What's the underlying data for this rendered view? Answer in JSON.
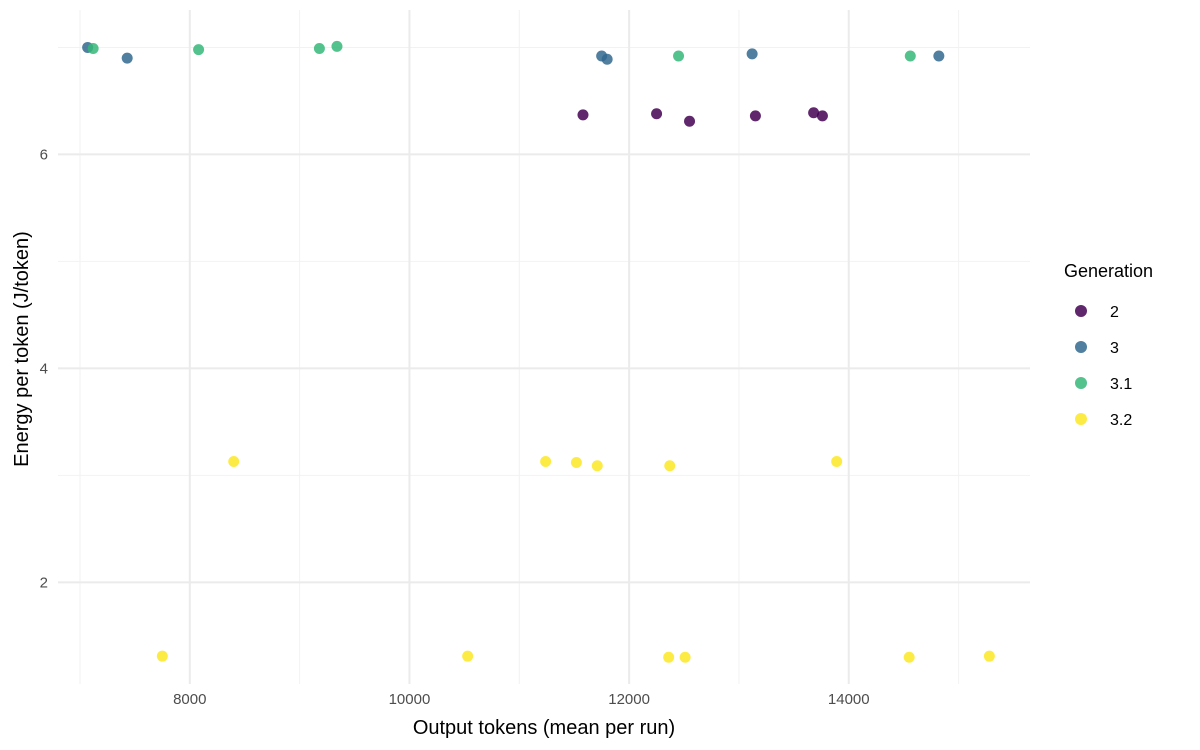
{
  "chart_data": {
    "type": "scatter",
    "title": "",
    "xlabel": "Output tokens (mean per run)",
    "ylabel": "Energy per token (J/token)",
    "xlim": [
      6800,
      15650
    ],
    "ylim": [
      1.05,
      7.35
    ],
    "x_ticks": [
      8000,
      10000,
      12000,
      14000
    ],
    "y_ticks": [
      2,
      4,
      6
    ],
    "grid": true,
    "legend": {
      "title": "Generation",
      "position": "right"
    },
    "series": [
      {
        "name": "2",
        "color": "#440154",
        "points": [
          {
            "x": 11580,
            "y": 6.37
          },
          {
            "x": 12250,
            "y": 6.38
          },
          {
            "x": 12550,
            "y": 6.31
          },
          {
            "x": 13150,
            "y": 6.36
          },
          {
            "x": 13680,
            "y": 6.39
          },
          {
            "x": 13760,
            "y": 6.36
          }
        ]
      },
      {
        "name": "3",
        "color": "#31688E",
        "points": [
          {
            "x": 7070,
            "y": 7.0
          },
          {
            "x": 7430,
            "y": 6.9
          },
          {
            "x": 11750,
            "y": 6.92
          },
          {
            "x": 11800,
            "y": 6.89
          },
          {
            "x": 13120,
            "y": 6.94
          },
          {
            "x": 14820,
            "y": 6.92
          }
        ]
      },
      {
        "name": "3.1",
        "color": "#35B779",
        "points": [
          {
            "x": 7120,
            "y": 6.99
          },
          {
            "x": 8080,
            "y": 6.98
          },
          {
            "x": 9180,
            "y": 6.99
          },
          {
            "x": 9340,
            "y": 7.01
          },
          {
            "x": 12450,
            "y": 6.92
          },
          {
            "x": 14560,
            "y": 6.92
          }
        ]
      },
      {
        "name": "3.2",
        "color": "#FDE725",
        "points": [
          {
            "x": 7750,
            "y": 1.31
          },
          {
            "x": 8400,
            "y": 3.13
          },
          {
            "x": 10530,
            "y": 1.31
          },
          {
            "x": 11240,
            "y": 3.13
          },
          {
            "x": 11520,
            "y": 3.12
          },
          {
            "x": 11710,
            "y": 3.09
          },
          {
            "x": 12360,
            "y": 1.3
          },
          {
            "x": 12370,
            "y": 3.09
          },
          {
            "x": 12510,
            "y": 1.3
          },
          {
            "x": 13890,
            "y": 3.13
          },
          {
            "x": 14550,
            "y": 1.3
          },
          {
            "x": 15280,
            "y": 1.31
          }
        ]
      }
    ]
  }
}
